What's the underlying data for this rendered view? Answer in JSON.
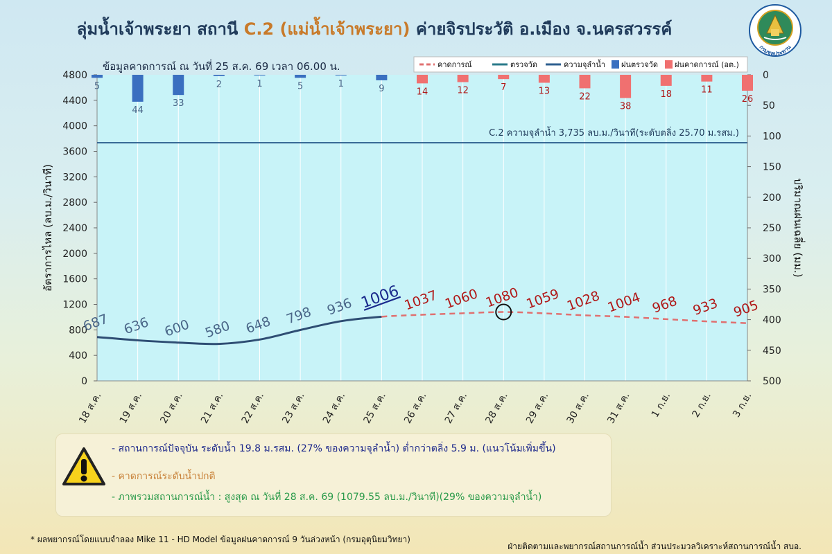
{
  "title": {
    "main": "ลุ่มน้ำเจ้าพระยา สถานี ",
    "station": "C.2 (แม่น้ำเจ้าพระยา)",
    "place": " ค่ายจิรประวัติ อ.เมือง จ.นครสวรรค์"
  },
  "forecast_date": "ข้อมูลคาดการณ์ ณ วันที่ 25 ส.ค. 69 เวลา 06.00 น.",
  "logo_text": "กรมชลประทาน",
  "info": {
    "current": "-  สถานการณ์ปัจจุบัน ระดับน้ำ 19.8 ม.รสม. (27% ของความจุลำน้ำ) ต่ำกว่าตลิ่ง 5.9 ม. (แนวโน้มเพิ่มขึ้น)",
    "forecast": "-  คาดการณ์ระดับน้ำปกติ",
    "overview": "-  ภาพรวมสถานการณ์น้ำ : สูงสุด ณ วันที่ 28 ส.ค. 69 (1079.55 ลบ.ม./วินาที)(29% ของความจุลำน้ำ)"
  },
  "footnote": "*  ผลพยากรณ์โดยแบบจำลอง Mike 11 - HD Model  ข้อมูลฝนคาดการณ์ 9 วันล่วงหน้า (กรมอุตุนิยมวิทยา)",
  "credit": "ฝ่ายติดตามและพยากรณ์สถานการณ์น้ำ ส่วนประมวลวิเคราะห์สถานการณ์น้ำ สบอ.",
  "colors": {
    "observed_flow": "#2e4d73",
    "forecast_flow": "#e07070",
    "capacity": "#2e5f8f",
    "obs_rain": "#3a6fc0",
    "fc_rain": "#f07070",
    "plot_bg": "#c8f3f8",
    "obs_label": "#4a6688",
    "fc_label": "#b01818",
    "today_label": "#1a2a8c"
  },
  "chart_data": {
    "type": "line",
    "categories": [
      "18 ส.ค.",
      "19 ส.ค.",
      "20 ส.ค.",
      "21 ส.ค.",
      "22 ส.ค.",
      "23 ส.ค.",
      "24 ส.ค.",
      "25 ส.ค.",
      "26 ส.ค.",
      "27 ส.ค.",
      "28 ส.ค.",
      "29 ส.ค.",
      "30 ส.ค.",
      "31 ส.ค.",
      "1 ก.ย.",
      "2 ก.ย.",
      "3 ก.ย."
    ],
    "ylabel": "อัตราการไหล (ลบ.ม./วินาที)",
    "ylabel_right": "ปริมาณฝนเฉลี่ย (มม.)",
    "ylim": [
      0,
      4800
    ],
    "y_ticks": [
      0,
      400,
      800,
      1200,
      1600,
      2000,
      2400,
      2800,
      3200,
      3600,
      4000,
      4400,
      4800
    ],
    "ylim_right": [
      0,
      500
    ],
    "y_right_ticks": [
      0,
      50,
      100,
      150,
      200,
      250,
      300,
      350,
      400,
      450,
      500
    ],
    "right_axis_inverted": true,
    "flow": [
      687,
      636,
      600,
      580,
      648,
      798,
      936,
      1006,
      1037,
      1060,
      1080,
      1059,
      1028,
      1004,
      968,
      933,
      905
    ],
    "observed_count": 8,
    "peak_index": 10,
    "rain": [
      5,
      44,
      33,
      2,
      1,
      5,
      1,
      9,
      14,
      12,
      7,
      13,
      22,
      38,
      18,
      11,
      26
    ],
    "capacity": 3735,
    "capacity_label": "C.2 ความจุลำน้ำ 3,735 ลบ.ม./วินาที(ระดับตลิ่ง 25.70 ม.รสม.)",
    "legend": [
      "คาดการณ์",
      "ตรวจวัด",
      "ความจุลำน้ำ",
      "ฝนตรวจวัด",
      "ฝนคาดการณ์ (อต.)"
    ],
    "legend_position": "top-right",
    "grid": "vertical"
  }
}
